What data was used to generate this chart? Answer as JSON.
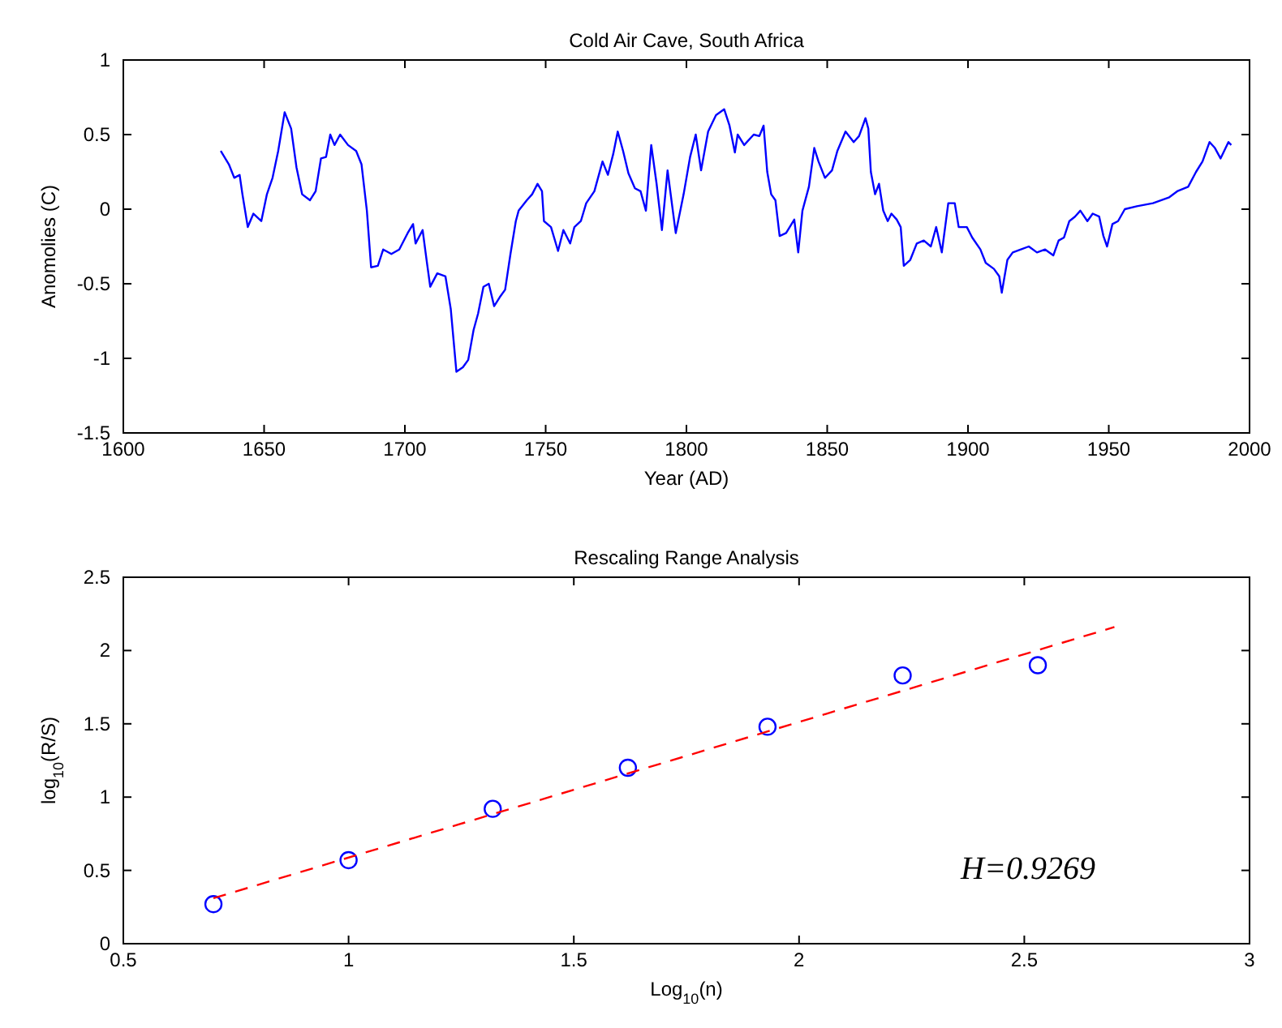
{
  "chart_data": [
    {
      "type": "line",
      "title": "Cold Air Cave, South Africa",
      "xlabel": "Year (AD)",
      "ylabel": "Anomolies (C)",
      "xlim": [
        1600,
        2000
      ],
      "xticks": [
        1600,
        1650,
        1700,
        1750,
        1800,
        1850,
        1900,
        1950,
        2000
      ],
      "ylim": [
        -1.5,
        1
      ],
      "yticks": [
        -1.5,
        -1,
        -0.5,
        0,
        0.5,
        1
      ],
      "grid": false,
      "series": [
        {
          "color": "#0000ff",
          "x": [
            1634.6,
            1637.5,
            1639.4,
            1641.3,
            1642.3,
            1644.2,
            1646.2,
            1649,
            1651,
            1653,
            1655,
            1657.3,
            1659.6,
            1661.5,
            1663.5,
            1666.3,
            1668.3,
            1670.2,
            1672,
            1673.5,
            1675,
            1677,
            1679.8,
            1682.7,
            1684.6,
            1686.5,
            1688,
            1690.4,
            1692.3,
            1695.2,
            1698,
            1701,
            1702.9,
            1703.8,
            1706.3,
            1707.7,
            1709,
            1711.5,
            1714.4,
            1716.3,
            1718.3,
            1720.6,
            1722.5,
            1724.4,
            1726,
            1727.9,
            1729.8,
            1731.7,
            1733.7,
            1735.6,
            1737.5,
            1739.4,
            1740.4,
            1743.3,
            1745.2,
            1747.1,
            1748.7,
            1749.4,
            1751.9,
            1754.4,
            1756.3,
            1758.7,
            1760.2,
            1762.5,
            1764.4,
            1767.3,
            1770.2,
            1772.1,
            1774,
            1775.6,
            1777.5,
            1779.4,
            1781.7,
            1783.7,
            1785.6,
            1787.5,
            1789.4,
            1791.3,
            1793.3,
            1796.2,
            1799,
            1801.3,
            1803.3,
            1805.2,
            1807.7,
            1810.5,
            1813.4,
            1815.3,
            1817.2,
            1818.2,
            1820.5,
            1823.9,
            1825.9,
            1827.4,
            1828.7,
            1830.1,
            1831.6,
            1833.1,
            1835.4,
            1838.3,
            1839.7,
            1841.2,
            1843.5,
            1845.4,
            1846.9,
            1849.2,
            1851.7,
            1853.6,
            1856.5,
            1859.4,
            1861.3,
            1863.6,
            1864.6,
            1865.5,
            1867,
            1868.4,
            1869.9,
            1871.5,
            1872.8,
            1874.7,
            1876.1,
            1877.2,
            1879.5,
            1881.8,
            1884.3,
            1886.8,
            1888.7,
            1890.7,
            1893,
            1895.3,
            1896.7,
            1899.6,
            1901.5,
            1904.4,
            1906.3,
            1909.2,
            1911.1,
            1912,
            1914,
            1915.9,
            1918.8,
            1921.6,
            1924.5,
            1927.4,
            1930.3,
            1932.2,
            1934.1,
            1936,
            1938,
            1939.9,
            1942.4,
            1944.3,
            1946.6,
            1948.1,
            1949.4,
            1951.3,
            1953.3,
            1955.7,
            1960,
            1965.7,
            1971.5,
            1974.3,
            1978.2,
            1981,
            1983.3,
            1985.8,
            1987.7,
            1989.7,
            1992.5,
            1993.5
          ],
          "values": [
            0.39,
            0.3,
            0.21,
            0.23,
            0.1,
            -0.12,
            -0.03,
            -0.08,
            0.1,
            0.21,
            0.39,
            0.65,
            0.54,
            0.28,
            0.1,
            0.06,
            0.12,
            0.34,
            0.35,
            0.5,
            0.43,
            0.5,
            0.43,
            0.39,
            0.3,
            -0.01,
            -0.39,
            -0.38,
            -0.27,
            -0.3,
            -0.27,
            -0.16,
            -0.1,
            -0.23,
            -0.14,
            -0.34,
            -0.52,
            -0.43,
            -0.45,
            -0.67,
            -1.09,
            -1.06,
            -1.01,
            -0.81,
            -0.7,
            -0.52,
            -0.5,
            -0.65,
            -0.59,
            -0.54,
            -0.3,
            -0.08,
            -0.01,
            0.06,
            0.1,
            0.17,
            0.12,
            -0.08,
            -0.12,
            -0.28,
            -0.14,
            -0.23,
            -0.12,
            -0.08,
            0.04,
            0.12,
            0.32,
            0.23,
            0.37,
            0.52,
            0.39,
            0.24,
            0.14,
            0.12,
            -0.01,
            0.43,
            0.17,
            -0.14,
            0.26,
            -0.16,
            0.1,
            0.35,
            0.5,
            0.26,
            0.52,
            0.63,
            0.67,
            0.56,
            0.38,
            0.5,
            0.43,
            0.5,
            0.49,
            0.56,
            0.25,
            0.1,
            0.06,
            -0.18,
            -0.16,
            -0.07,
            -0.29,
            -0.01,
            0.15,
            0.41,
            0.32,
            0.21,
            0.26,
            0.39,
            0.52,
            0.45,
            0.49,
            0.61,
            0.54,
            0.25,
            0.1,
            0.17,
            -0.01,
            -0.08,
            -0.03,
            -0.07,
            -0.12,
            -0.38,
            -0.34,
            -0.23,
            -0.21,
            -0.25,
            -0.12,
            -0.29,
            0.04,
            0.04,
            -0.12,
            -0.12,
            -0.19,
            -0.27,
            -0.36,
            -0.4,
            -0.45,
            -0.56,
            -0.34,
            -0.29,
            -0.27,
            -0.25,
            -0.29,
            -0.27,
            -0.31,
            -0.21,
            -0.19,
            -0.08,
            -0.05,
            -0.01,
            -0.08,
            -0.03,
            -0.05,
            -0.18,
            -0.25,
            -0.1,
            -0.08,
            0,
            0.02,
            0.04,
            0.08,
            0.12,
            0.15,
            0.25,
            0.32,
            0.45,
            0.41,
            0.34,
            0.45,
            0.43
          ]
        }
      ]
    },
    {
      "type": "scatter",
      "title": "Rescaling Range Analysis",
      "xlabel": "Log$_{10}$(n)",
      "ylabel": "log$_{10}$(R/S)",
      "xlim": [
        0.5,
        3
      ],
      "xticks": [
        0.5,
        1,
        1.5,
        2,
        2.5,
        3
      ],
      "ylim": [
        0,
        2.5
      ],
      "yticks": [
        0,
        0.5,
        1,
        1.5,
        2,
        2.5
      ],
      "grid": false,
      "annotations": [
        "H=0.9269"
      ],
      "series": [
        {
          "color": "#0000ff",
          "marker": "circle",
          "x": [
            0.7,
            1.0,
            1.32,
            1.62,
            1.93,
            2.23,
            2.53
          ],
          "values": [
            0.27,
            0.57,
            0.92,
            1.2,
            1.48,
            1.83,
            1.9
          ]
        },
        {
          "type": "line",
          "color": "#ff0000",
          "line_style": "dashed",
          "x": [
            0.7,
            2.7
          ],
          "values": [
            0.31,
            2.16
          ]
        }
      ]
    }
  ]
}
